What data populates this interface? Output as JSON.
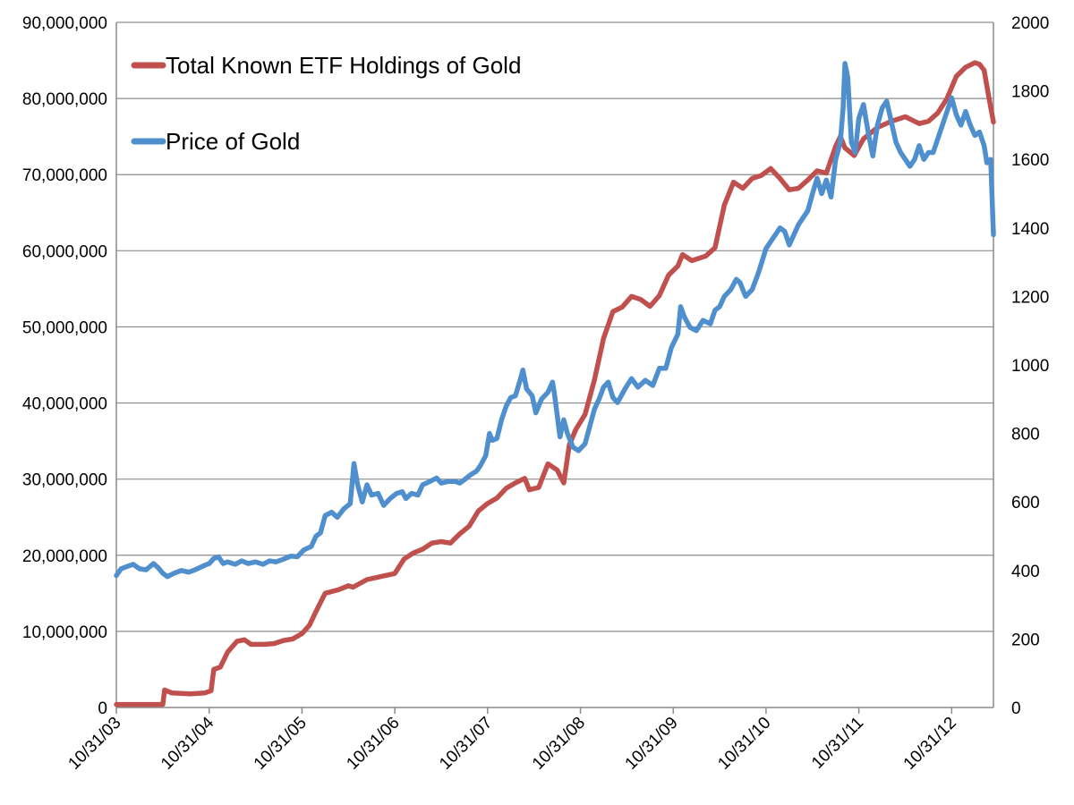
{
  "chart_data": {
    "type": "line",
    "title": "",
    "x": [
      "10/31/03",
      "10/31/04",
      "10/31/05",
      "10/31/06",
      "10/31/07",
      "10/31/08",
      "10/31/09",
      "10/31/10",
      "10/31/11",
      "10/31/12"
    ],
    "x_tick_labels": [
      "10/31/03",
      "10/31/04",
      "10/31/05",
      "10/31/06",
      "10/31/07",
      "10/31/08",
      "10/31/09",
      "10/31/10",
      "10/31/11",
      "10/31/12"
    ],
    "x_end": 9.45,
    "y_left": {
      "ylim": [
        0,
        90000000
      ],
      "ticks": [
        0,
        10000000,
        20000000,
        30000000,
        40000000,
        50000000,
        60000000,
        70000000,
        80000000,
        90000000
      ],
      "tick_labels": [
        "0",
        "10,000,000",
        "20,000,000",
        "30,000,000",
        "40,000,000",
        "50,000,000",
        "60,000,000",
        "70,000,000",
        "80,000,000",
        "90,000,000"
      ]
    },
    "y_right": {
      "ylim": [
        0,
        2000
      ],
      "ticks": [
        0,
        200,
        400,
        600,
        800,
        1000,
        1200,
        1400,
        1600,
        1800,
        2000
      ],
      "tick_labels": [
        "0",
        "200",
        "400",
        "600",
        "800",
        "1000",
        "1200",
        "1400",
        "1600",
        "1800",
        "2000"
      ]
    },
    "grid": true,
    "legend_position": "top-left",
    "series": [
      {
        "name": "Total Known ETF Holdings of Gold",
        "axis": "left",
        "color": "#c0504d",
        "points": [
          [
            0.0,
            400000
          ],
          [
            0.5,
            400000
          ],
          [
            0.52,
            2300000
          ],
          [
            0.6,
            1900000
          ],
          [
            0.8,
            1800000
          ],
          [
            0.95,
            1900000
          ],
          [
            1.02,
            2200000
          ],
          [
            1.05,
            5000000
          ],
          [
            1.12,
            5300000
          ],
          [
            1.2,
            7300000
          ],
          [
            1.3,
            8700000
          ],
          [
            1.38,
            8900000
          ],
          [
            1.45,
            8300000
          ],
          [
            1.6,
            8300000
          ],
          [
            1.7,
            8400000
          ],
          [
            1.8,
            8800000
          ],
          [
            1.9,
            9000000
          ],
          [
            2.0,
            9700000
          ],
          [
            2.08,
            10800000
          ],
          [
            2.15,
            12600000
          ],
          [
            2.25,
            15000000
          ],
          [
            2.4,
            15500000
          ],
          [
            2.5,
            16000000
          ],
          [
            2.55,
            15800000
          ],
          [
            2.7,
            16800000
          ],
          [
            2.85,
            17200000
          ],
          [
            3.0,
            17600000
          ],
          [
            3.1,
            19500000
          ],
          [
            3.2,
            20300000
          ],
          [
            3.3,
            20800000
          ],
          [
            3.4,
            21600000
          ],
          [
            3.5,
            21800000
          ],
          [
            3.6,
            21600000
          ],
          [
            3.7,
            22800000
          ],
          [
            3.8,
            23800000
          ],
          [
            3.9,
            25800000
          ],
          [
            4.0,
            26800000
          ],
          [
            4.1,
            27500000
          ],
          [
            4.2,
            28800000
          ],
          [
            4.3,
            29500000
          ],
          [
            4.4,
            30100000
          ],
          [
            4.45,
            28600000
          ],
          [
            4.55,
            28900000
          ],
          [
            4.65,
            32000000
          ],
          [
            4.75,
            31200000
          ],
          [
            4.82,
            29500000
          ],
          [
            4.88,
            34500000
          ],
          [
            4.95,
            36500000
          ],
          [
            5.05,
            38500000
          ],
          [
            5.15,
            43000000
          ],
          [
            5.25,
            48500000
          ],
          [
            5.35,
            52000000
          ],
          [
            5.45,
            52600000
          ],
          [
            5.55,
            54000000
          ],
          [
            5.65,
            53600000
          ],
          [
            5.75,
            52700000
          ],
          [
            5.85,
            54100000
          ],
          [
            5.95,
            56800000
          ],
          [
            6.05,
            58000000
          ],
          [
            6.1,
            59500000
          ],
          [
            6.2,
            58700000
          ],
          [
            6.35,
            59300000
          ],
          [
            6.45,
            60400000
          ],
          [
            6.55,
            66000000
          ],
          [
            6.65,
            69000000
          ],
          [
            6.75,
            68200000
          ],
          [
            6.85,
            69500000
          ],
          [
            6.95,
            69900000
          ],
          [
            7.05,
            70800000
          ],
          [
            7.15,
            69500000
          ],
          [
            7.25,
            68000000
          ],
          [
            7.35,
            68200000
          ],
          [
            7.45,
            69300000
          ],
          [
            7.55,
            70500000
          ],
          [
            7.65,
            70200000
          ],
          [
            7.75,
            73700000
          ],
          [
            7.8,
            75000000
          ],
          [
            7.85,
            73500000
          ],
          [
            7.95,
            72500000
          ],
          [
            8.05,
            74700000
          ],
          [
            8.2,
            76200000
          ],
          [
            8.35,
            77000000
          ],
          [
            8.5,
            77600000
          ],
          [
            8.65,
            76700000
          ],
          [
            8.75,
            77000000
          ],
          [
            8.85,
            78100000
          ],
          [
            8.95,
            80000000
          ],
          [
            9.05,
            82900000
          ],
          [
            9.15,
            84100000
          ],
          [
            9.25,
            84700000
          ],
          [
            9.3,
            84500000
          ],
          [
            9.35,
            83700000
          ],
          [
            9.4,
            80200000
          ],
          [
            9.45,
            76900000
          ]
        ]
      },
      {
        "name": "Price of Gold",
        "axis": "right",
        "color": "#4f8fcd",
        "points": [
          [
            0.0,
            385
          ],
          [
            0.05,
            405
          ],
          [
            0.12,
            412
          ],
          [
            0.18,
            418
          ],
          [
            0.25,
            405
          ],
          [
            0.32,
            402
          ],
          [
            0.4,
            420
          ],
          [
            0.45,
            408
          ],
          [
            0.5,
            392
          ],
          [
            0.55,
            382
          ],
          [
            0.62,
            392
          ],
          [
            0.7,
            400
          ],
          [
            0.78,
            395
          ],
          [
            0.85,
            402
          ],
          [
            0.95,
            415
          ],
          [
            1.0,
            420
          ],
          [
            1.05,
            435
          ],
          [
            1.1,
            440
          ],
          [
            1.15,
            420
          ],
          [
            1.2,
            425
          ],
          [
            1.28,
            418
          ],
          [
            1.35,
            428
          ],
          [
            1.42,
            420
          ],
          [
            1.5,
            425
          ],
          [
            1.58,
            418
          ],
          [
            1.65,
            428
          ],
          [
            1.72,
            425
          ],
          [
            1.8,
            433
          ],
          [
            1.88,
            442
          ],
          [
            1.95,
            440
          ],
          [
            2.02,
            460
          ],
          [
            2.1,
            470
          ],
          [
            2.15,
            500
          ],
          [
            2.2,
            510
          ],
          [
            2.25,
            560
          ],
          [
            2.32,
            570
          ],
          [
            2.38,
            555
          ],
          [
            2.45,
            580
          ],
          [
            2.52,
            595
          ],
          [
            2.56,
            712
          ],
          [
            2.6,
            650
          ],
          [
            2.65,
            600
          ],
          [
            2.7,
            650
          ],
          [
            2.75,
            620
          ],
          [
            2.82,
            625
          ],
          [
            2.88,
            590
          ],
          [
            2.95,
            610
          ],
          [
            3.02,
            625
          ],
          [
            3.08,
            630
          ],
          [
            3.12,
            610
          ],
          [
            3.18,
            625
          ],
          [
            3.25,
            620
          ],
          [
            3.3,
            650
          ],
          [
            3.38,
            660
          ],
          [
            3.45,
            670
          ],
          [
            3.5,
            655
          ],
          [
            3.58,
            660
          ],
          [
            3.65,
            660
          ],
          [
            3.7,
            655
          ],
          [
            3.75,
            665
          ],
          [
            3.82,
            680
          ],
          [
            3.88,
            690
          ],
          [
            3.92,
            705
          ],
          [
            3.98,
            735
          ],
          [
            4.02,
            800
          ],
          [
            4.05,
            780
          ],
          [
            4.1,
            785
          ],
          [
            4.15,
            840
          ],
          [
            4.2,
            880
          ],
          [
            4.25,
            905
          ],
          [
            4.3,
            910
          ],
          [
            4.35,
            955
          ],
          [
            4.38,
            985
          ],
          [
            4.42,
            930
          ],
          [
            4.48,
            910
          ],
          [
            4.52,
            860
          ],
          [
            4.58,
            900
          ],
          [
            4.65,
            920
          ],
          [
            4.7,
            950
          ],
          [
            4.72,
            915
          ],
          [
            4.78,
            790
          ],
          [
            4.82,
            840
          ],
          [
            4.86,
            800
          ],
          [
            4.92,
            760
          ],
          [
            4.98,
            750
          ],
          [
            5.05,
            770
          ],
          [
            5.1,
            820
          ],
          [
            5.15,
            870
          ],
          [
            5.2,
            900
          ],
          [
            5.25,
            935
          ],
          [
            5.3,
            950
          ],
          [
            5.35,
            905
          ],
          [
            5.4,
            890
          ],
          [
            5.48,
            930
          ],
          [
            5.55,
            960
          ],
          [
            5.62,
            935
          ],
          [
            5.7,
            955
          ],
          [
            5.78,
            940
          ],
          [
            5.85,
            990
          ],
          [
            5.92,
            990
          ],
          [
            5.98,
            1050
          ],
          [
            6.05,
            1090
          ],
          [
            6.08,
            1170
          ],
          [
            6.12,
            1140
          ],
          [
            6.18,
            1110
          ],
          [
            6.25,
            1100
          ],
          [
            6.32,
            1130
          ],
          [
            6.4,
            1120
          ],
          [
            6.45,
            1160
          ],
          [
            6.5,
            1170
          ],
          [
            6.55,
            1200
          ],
          [
            6.62,
            1220
          ],
          [
            6.68,
            1250
          ],
          [
            6.72,
            1240
          ],
          [
            6.78,
            1200
          ],
          [
            6.85,
            1220
          ],
          [
            6.92,
            1270
          ],
          [
            7.0,
            1340
          ],
          [
            7.05,
            1360
          ],
          [
            7.1,
            1380
          ],
          [
            7.15,
            1400
          ],
          [
            7.2,
            1390
          ],
          [
            7.25,
            1350
          ],
          [
            7.3,
            1380
          ],
          [
            7.35,
            1410
          ],
          [
            7.4,
            1430
          ],
          [
            7.45,
            1450
          ],
          [
            7.5,
            1500
          ],
          [
            7.55,
            1545
          ],
          [
            7.6,
            1500
          ],
          [
            7.65,
            1540
          ],
          [
            7.7,
            1490
          ],
          [
            7.75,
            1600
          ],
          [
            7.8,
            1650
          ],
          [
            7.83,
            1750
          ],
          [
            7.85,
            1880
          ],
          [
            7.88,
            1840
          ],
          [
            7.92,
            1650
          ],
          [
            7.96,
            1620
          ],
          [
            8.0,
            1720
          ],
          [
            8.05,
            1760
          ],
          [
            8.1,
            1680
          ],
          [
            8.15,
            1610
          ],
          [
            8.2,
            1700
          ],
          [
            8.25,
            1750
          ],
          [
            8.3,
            1770
          ],
          [
            8.35,
            1710
          ],
          [
            8.4,
            1650
          ],
          [
            8.45,
            1620
          ],
          [
            8.5,
            1600
          ],
          [
            8.55,
            1580
          ],
          [
            8.6,
            1600
          ],
          [
            8.65,
            1640
          ],
          [
            8.7,
            1600
          ],
          [
            8.75,
            1620
          ],
          [
            8.8,
            1620
          ],
          [
            8.85,
            1660
          ],
          [
            8.9,
            1700
          ],
          [
            8.95,
            1740
          ],
          [
            9.0,
            1780
          ],
          [
            9.05,
            1730
          ],
          [
            9.1,
            1700
          ],
          [
            9.15,
            1740
          ],
          [
            9.2,
            1700
          ],
          [
            9.25,
            1670
          ],
          [
            9.3,
            1680
          ],
          [
            9.35,
            1640
          ],
          [
            9.38,
            1590
          ],
          [
            9.42,
            1600
          ],
          [
            9.45,
            1380
          ]
        ]
      }
    ]
  }
}
